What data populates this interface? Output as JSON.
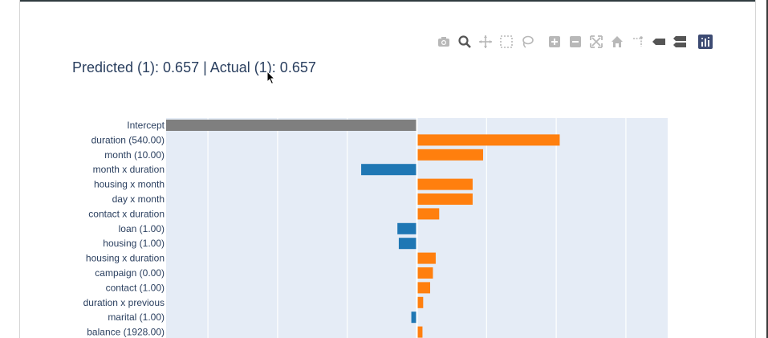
{
  "title": "Predicted (1): 0.657 | Actual (1): 0.657",
  "modebar": [
    {
      "name": "camera-icon",
      "active": false
    },
    {
      "name": "zoom-icon",
      "active": true
    },
    {
      "name": "pan-icon",
      "active": false
    },
    {
      "name": "box-select-icon",
      "active": false
    },
    {
      "name": "lasso-select-icon",
      "active": false
    },
    {
      "name": "zoom-in-icon",
      "active": false
    },
    {
      "name": "zoom-out-icon",
      "active": false
    },
    {
      "name": "autoscale-icon",
      "active": false
    },
    {
      "name": "reset-axes-icon",
      "active": false
    },
    {
      "name": "toggle-spike-lines-icon",
      "active": false
    },
    {
      "name": "show-closest-data-icon",
      "active": false
    },
    {
      "name": "compare-data-icon",
      "active": false
    },
    {
      "name": "plotly-logo-icon",
      "active": false
    }
  ],
  "colors": {
    "positive": "#ff7f0e",
    "negative": "#1f77b4",
    "intercept": "#7f7f7f",
    "plot_bg": "#e5ecf6",
    "grid": "#ffffff",
    "text": "#2a3f5f"
  },
  "chart_data": {
    "type": "bar",
    "orientation": "horizontal",
    "title": "Predicted (1): 0.657 | Actual (1): 0.657",
    "xlabel": "",
    "ylabel": "",
    "xlim": [
      -0.36,
      0.36
    ],
    "grid": true,
    "categories": [
      "Intercept",
      "duration (540.00)",
      "month (10.00)",
      "month x duration",
      "housing x month",
      "day x month",
      "contact x duration",
      "loan (1.00)",
      "housing (1.00)",
      "housing x duration",
      "campaign (0.00)",
      "contact (1.00)",
      "duration x previous",
      "marital (1.00)",
      "balance (1928.00)"
    ],
    "values": [
      -0.36,
      0.205,
      0.095,
      -0.08,
      0.08,
      0.08,
      0.032,
      -0.028,
      -0.026,
      0.027,
      0.023,
      0.019,
      0.009,
      -0.008,
      0.008
    ],
    "bar_roles": [
      "intercept",
      "positive",
      "positive",
      "negative",
      "positive",
      "positive",
      "positive",
      "negative",
      "negative",
      "positive",
      "positive",
      "positive",
      "positive",
      "negative",
      "positive"
    ]
  }
}
